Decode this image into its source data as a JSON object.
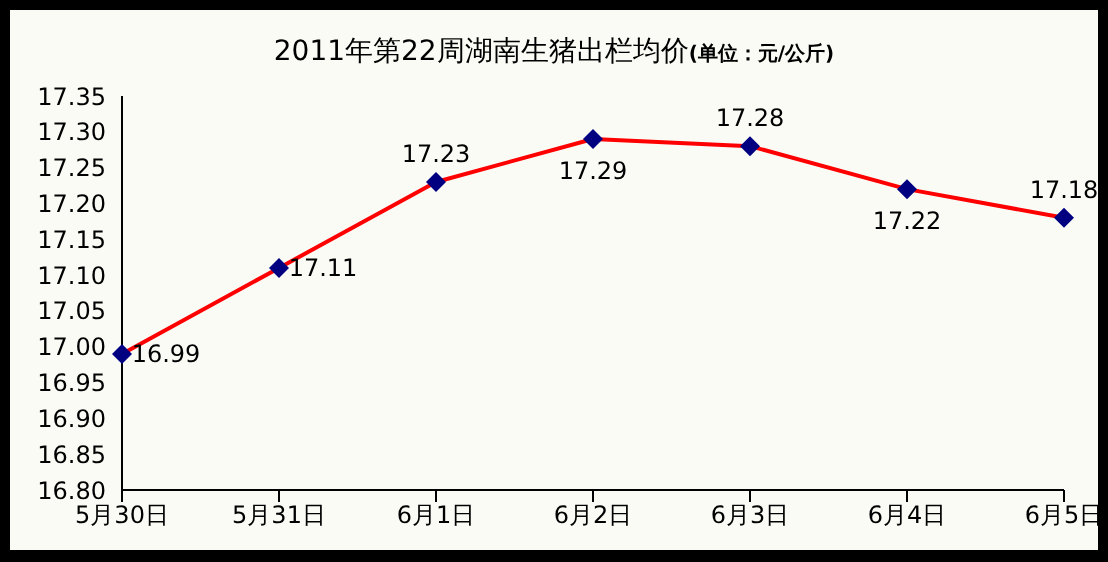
{
  "chart_data": {
    "type": "line",
    "title": "2011年第22周湖南生猪出栏均价",
    "subtitle": "(单位：元/公斤)",
    "categories": [
      "5月30日",
      "5月31日",
      "6月1日",
      "6月2日",
      "6月3日",
      "6月4日",
      "6月5日"
    ],
    "series": [
      {
        "color": "#ff0000",
        "values": [
          16.99,
          17.11,
          17.23,
          17.29,
          17.28,
          17.22,
          17.18
        ]
      }
    ],
    "ylim": [
      16.8,
      17.35
    ],
    "yticks": [
      {
        "value": 16.8,
        "label": "16.80"
      },
      {
        "value": 16.85,
        "label": "16.85"
      },
      {
        "value": 16.9,
        "label": "16.90"
      },
      {
        "value": 16.95,
        "label": "16.95"
      },
      {
        "value": 17.0,
        "label": "17.00"
      },
      {
        "value": 17.05,
        "label": "17.05"
      },
      {
        "value": 17.1,
        "label": "17.10"
      },
      {
        "value": 17.15,
        "label": "17.15"
      },
      {
        "value": 17.2,
        "label": "17.20"
      },
      {
        "value": 17.25,
        "label": "17.25"
      },
      {
        "value": 17.3,
        "label": "17.30"
      },
      {
        "value": 17.35,
        "label": "17.35"
      }
    ],
    "marker": "diamond",
    "line_style": "solid",
    "grid": false,
    "legend": false,
    "data_labels": true
  }
}
